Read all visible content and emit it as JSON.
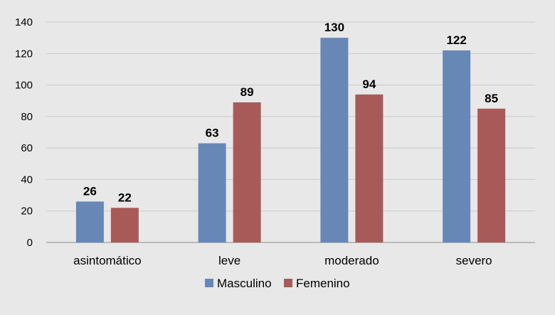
{
  "chart_data": {
    "type": "bar",
    "categories": [
      "asintomático",
      "leve",
      "moderado",
      "severo"
    ],
    "series": [
      {
        "name": "Masculino",
        "values": [
          26,
          63,
          130,
          122
        ],
        "color": "#6787b7"
      },
      {
        "name": "Femenino",
        "values": [
          22,
          89,
          94,
          85
        ],
        "color": "#a85a58"
      }
    ],
    "ylim": [
      0,
      140
    ],
    "yticks": [
      0,
      20,
      40,
      60,
      80,
      100,
      120,
      140
    ],
    "grid": true,
    "legend_position": "bottom",
    "title": "",
    "xlabel": "",
    "ylabel": ""
  },
  "colors": {
    "background": "#e8e8e8",
    "gridline": "#c8c8c8",
    "baseline": "#8c8c8c"
  }
}
